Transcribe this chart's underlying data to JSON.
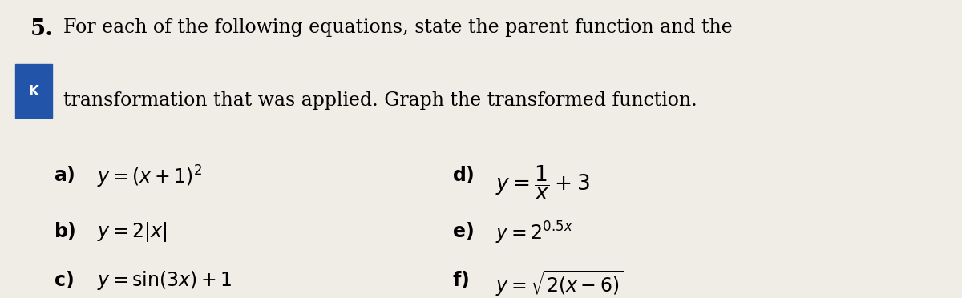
{
  "background_color": "#f0ede6",
  "number": "5.",
  "box_label": "K",
  "box_color": "#2255aa",
  "line1": "For each of the following equations, state the parent function and the",
  "line2": "transformation that was applied. Graph the transformed function.",
  "items": [
    {
      "label": "a)",
      "math": "y = (x + 1)^{2}"
    },
    {
      "label": "b)",
      "math": "y = 2|x|"
    },
    {
      "label": "c)",
      "math": "y = \\sin (3x) + 1"
    },
    {
      "label": "d)",
      "math": "y = \\dfrac{1}{x} + 3"
    },
    {
      "label": "e)",
      "math": "y = 2^{0.5x}"
    },
    {
      "label": "f)",
      "math": "y = \\sqrt{2(x - 6)}"
    }
  ],
  "font_size_header": 17,
  "font_size_number": 20,
  "font_size_math": 17,
  "font_size_label": 17
}
